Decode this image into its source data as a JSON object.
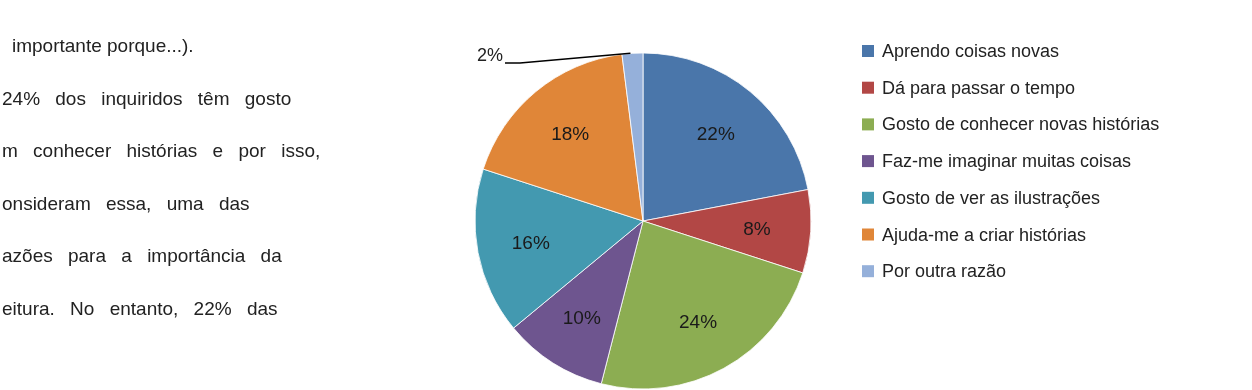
{
  "chart_data": {
    "type": "pie",
    "categories": [
      "Aprendo coisas novas",
      "Dá para passar o tempo",
      "Gosto de conhecer novas histórias",
      "Faz-me imaginar muitas coisas",
      "Gosto de ver as ilustrações",
      "Ajuda-me a criar histórias",
      "Por outra razão"
    ],
    "values": [
      22,
      8,
      24,
      10,
      16,
      18,
      2
    ],
    "colors": [
      "#4a76aa",
      "#b24745",
      "#8cad52",
      "#6e558f",
      "#4399b0",
      "#e08638",
      "#95b0da"
    ],
    "value_labels": [
      "22%",
      "8%",
      "24%",
      "10%",
      "16%",
      "18%",
      "2%"
    ],
    "legend": "right",
    "annotations": [
      "importante porque...).",
      "24% dos inquiridos têm gosto",
      "m conhecer histórias e por isso,",
      "onsideram essa, uma das",
      "azões para a importância da",
      "eitura. No entanto, 22% das"
    ]
  }
}
